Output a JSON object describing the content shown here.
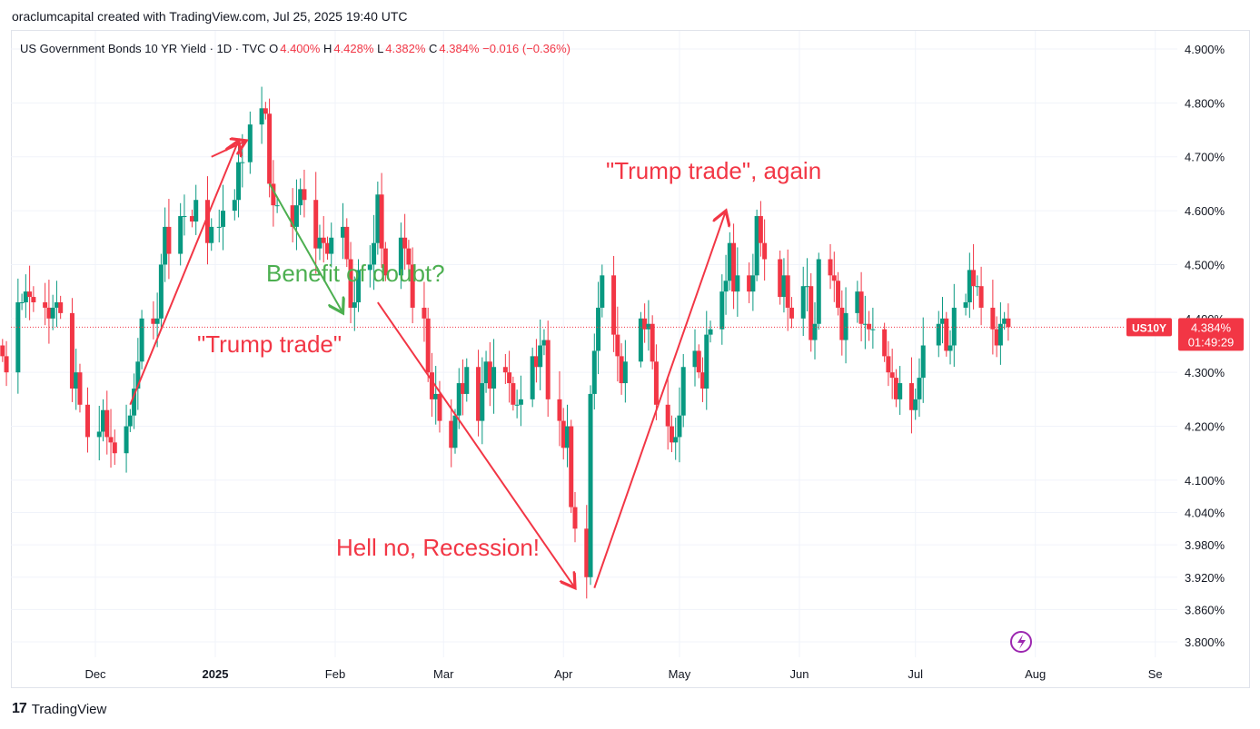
{
  "credit": "oraclumcapital created with TradingView.com, Jul 25, 2025 19:40 UTC",
  "legend": {
    "symbol": "US Government Bonds 10 YR Yield · 1D · TVC",
    "o_label": "O",
    "o_value": "4.400%",
    "h_label": "H",
    "h_value": "4.428%",
    "l_label": "L",
    "l_value": "4.382%",
    "c_label": "C",
    "c_value": "4.384%",
    "change": "−0.016 (−0.36%)"
  },
  "brand": {
    "logo": "17",
    "name": "TradingView"
  },
  "colors": {
    "up": "#089981",
    "down": "#f23645",
    "annotation_red": "#f23645",
    "annotation_green": "#4caf50",
    "grid": "#f0f3fa"
  },
  "chart_data": {
    "type": "candlestick",
    "title": "US Government Bonds 10 YR Yield",
    "xlabel": "",
    "ylabel": "",
    "ylim": [
      3.76,
      4.95
    ],
    "y_ticks": [
      "4.900%",
      "4.800%",
      "4.700%",
      "4.600%",
      "4.500%",
      "4.400%",
      "4.300%",
      "4.200%",
      "4.100%",
      "4.040%",
      "3.980%",
      "3.920%",
      "3.860%",
      "3.800%"
    ],
    "x_ticks": [
      {
        "label": "Dec",
        "date": "2024-12-01"
      },
      {
        "label": "2025",
        "date": "2025-01-01",
        "bold": true
      },
      {
        "label": "Feb",
        "date": "2025-02-01"
      },
      {
        "label": "Mar",
        "date": "2025-03-01"
      },
      {
        "label": "Apr",
        "date": "2025-04-01"
      },
      {
        "label": "May",
        "date": "2025-05-01"
      },
      {
        "label": "Jun",
        "date": "2025-06-01"
      },
      {
        "label": "Jul",
        "date": "2025-07-01"
      },
      {
        "label": "Aug",
        "date": "2025-08-01"
      },
      {
        "label": "Se",
        "date": "2025-09-01"
      }
    ],
    "last_price": {
      "symbol": "US10Y",
      "value": "4.384%",
      "countdown": "01:49:29",
      "price": 4.384
    },
    "closes": [
      {
        "date": "2024-11-07",
        "c": 4.33
      },
      {
        "date": "2024-11-08",
        "c": 4.3
      },
      {
        "date": "2024-11-11",
        "c": 4.43
      },
      {
        "date": "2024-11-12",
        "c": 4.43
      },
      {
        "date": "2024-11-13",
        "c": 4.45
      },
      {
        "date": "2024-11-14",
        "c": 4.44
      },
      {
        "date": "2024-11-15",
        "c": 4.43
      },
      {
        "date": "2024-11-18",
        "c": 4.42
      },
      {
        "date": "2024-11-19",
        "c": 4.4
      },
      {
        "date": "2024-11-20",
        "c": 4.42
      },
      {
        "date": "2024-11-21",
        "c": 4.43
      },
      {
        "date": "2024-11-22",
        "c": 4.41
      },
      {
        "date": "2024-11-25",
        "c": 4.27
      },
      {
        "date": "2024-11-26",
        "c": 4.3
      },
      {
        "date": "2024-11-27",
        "c": 4.24
      },
      {
        "date": "2024-11-29",
        "c": 4.18
      },
      {
        "date": "2024-12-02",
        "c": 4.19
      },
      {
        "date": "2024-12-03",
        "c": 4.23
      },
      {
        "date": "2024-12-04",
        "c": 4.18
      },
      {
        "date": "2024-12-05",
        "c": 4.17
      },
      {
        "date": "2024-12-06",
        "c": 4.15
      },
      {
        "date": "2024-12-09",
        "c": 4.2
      },
      {
        "date": "2024-12-10",
        "c": 4.22
      },
      {
        "date": "2024-12-11",
        "c": 4.27
      },
      {
        "date": "2024-12-12",
        "c": 4.32
      },
      {
        "date": "2024-12-13",
        "c": 4.4
      },
      {
        "date": "2024-12-16",
        "c": 4.39
      },
      {
        "date": "2024-12-17",
        "c": 4.4
      },
      {
        "date": "2024-12-18",
        "c": 4.5
      },
      {
        "date": "2024-12-19",
        "c": 4.57
      },
      {
        "date": "2024-12-20",
        "c": 4.52
      },
      {
        "date": "2024-12-23",
        "c": 4.59
      },
      {
        "date": "2024-12-24",
        "c": 4.59
      },
      {
        "date": "2024-12-26",
        "c": 4.58
      },
      {
        "date": "2024-12-27",
        "c": 4.62
      },
      {
        "date": "2024-12-30",
        "c": 4.54
      },
      {
        "date": "2024-12-31",
        "c": 4.57
      },
      {
        "date": "2025-01-02",
        "c": 4.57
      },
      {
        "date": "2025-01-03",
        "c": 4.6
      },
      {
        "date": "2025-01-06",
        "c": 4.62
      },
      {
        "date": "2025-01-07",
        "c": 4.69
      },
      {
        "date": "2025-01-08",
        "c": 4.69
      },
      {
        "date": "2025-01-10",
        "c": 4.76
      },
      {
        "date": "2025-01-13",
        "c": 4.79
      },
      {
        "date": "2025-01-14",
        "c": 4.78
      },
      {
        "date": "2025-01-15",
        "c": 4.65
      },
      {
        "date": "2025-01-16",
        "c": 4.61
      },
      {
        "date": "2025-01-17",
        "c": 4.61
      },
      {
        "date": "2025-01-21",
        "c": 4.57
      },
      {
        "date": "2025-01-22",
        "c": 4.61
      },
      {
        "date": "2025-01-23",
        "c": 4.64
      },
      {
        "date": "2025-01-24",
        "c": 4.62
      },
      {
        "date": "2025-01-27",
        "c": 4.53
      },
      {
        "date": "2025-01-28",
        "c": 4.55
      },
      {
        "date": "2025-01-29",
        "c": 4.54
      },
      {
        "date": "2025-01-30",
        "c": 4.52
      },
      {
        "date": "2025-01-31",
        "c": 4.55
      },
      {
        "date": "2025-02-03",
        "c": 4.57
      },
      {
        "date": "2025-02-04",
        "c": 4.51
      },
      {
        "date": "2025-02-05",
        "c": 4.42
      },
      {
        "date": "2025-02-06",
        "c": 4.43
      },
      {
        "date": "2025-02-07",
        "c": 4.49
      },
      {
        "date": "2025-02-10",
        "c": 4.5
      },
      {
        "date": "2025-02-11",
        "c": 4.54
      },
      {
        "date": "2025-02-12",
        "c": 4.63
      },
      {
        "date": "2025-02-13",
        "c": 4.53
      },
      {
        "date": "2025-02-14",
        "c": 4.48
      },
      {
        "date": "2025-02-18",
        "c": 4.55
      },
      {
        "date": "2025-02-19",
        "c": 4.53
      },
      {
        "date": "2025-02-20",
        "c": 4.5
      },
      {
        "date": "2025-02-21",
        "c": 4.42
      },
      {
        "date": "2025-02-24",
        "c": 4.4
      },
      {
        "date": "2025-02-25",
        "c": 4.3
      },
      {
        "date": "2025-02-26",
        "c": 4.25
      },
      {
        "date": "2025-02-27",
        "c": 4.26
      },
      {
        "date": "2025-02-28",
        "c": 4.21
      },
      {
        "date": "2025-03-03",
        "c": 4.16
      },
      {
        "date": "2025-03-04",
        "c": 4.22
      },
      {
        "date": "2025-03-05",
        "c": 4.28
      },
      {
        "date": "2025-03-06",
        "c": 4.26
      },
      {
        "date": "2025-03-07",
        "c": 4.31
      },
      {
        "date": "2025-03-10",
        "c": 4.21
      },
      {
        "date": "2025-03-11",
        "c": 4.28
      },
      {
        "date": "2025-03-12",
        "c": 4.32
      },
      {
        "date": "2025-03-13",
        "c": 4.27
      },
      {
        "date": "2025-03-14",
        "c": 4.31
      },
      {
        "date": "2025-03-17",
        "c": 4.3
      },
      {
        "date": "2025-03-18",
        "c": 4.28
      },
      {
        "date": "2025-03-19",
        "c": 4.24
      },
      {
        "date": "2025-03-20",
        "c": 4.24
      },
      {
        "date": "2025-03-21",
        "c": 4.25
      },
      {
        "date": "2025-03-24",
        "c": 4.33
      },
      {
        "date": "2025-03-25",
        "c": 4.31
      },
      {
        "date": "2025-03-26",
        "c": 4.35
      },
      {
        "date": "2025-03-27",
        "c": 4.36
      },
      {
        "date": "2025-03-28",
        "c": 4.25
      },
      {
        "date": "2025-03-31",
        "c": 4.21
      },
      {
        "date": "2025-04-01",
        "c": 4.16
      },
      {
        "date": "2025-04-02",
        "c": 4.2
      },
      {
        "date": "2025-04-03",
        "c": 4.05
      },
      {
        "date": "2025-04-04",
        "c": 4.01
      },
      {
        "date": "2025-04-07",
        "c": 3.92
      },
      {
        "date": "2025-04-08",
        "c": 4.26
      },
      {
        "date": "2025-04-09",
        "c": 4.34
      },
      {
        "date": "2025-04-10",
        "c": 4.42
      },
      {
        "date": "2025-04-11",
        "c": 4.48
      },
      {
        "date": "2025-04-14",
        "c": 4.37
      },
      {
        "date": "2025-04-15",
        "c": 4.33
      },
      {
        "date": "2025-04-16",
        "c": 4.28
      },
      {
        "date": "2025-04-17",
        "c": 4.32
      },
      {
        "date": "2025-04-21",
        "c": 4.4
      },
      {
        "date": "2025-04-22",
        "c": 4.38
      },
      {
        "date": "2025-04-23",
        "c": 4.39
      },
      {
        "date": "2025-04-24",
        "c": 4.32
      },
      {
        "date": "2025-04-25",
        "c": 4.24
      },
      {
        "date": "2025-04-28",
        "c": 4.2
      },
      {
        "date": "2025-04-29",
        "c": 4.17
      },
      {
        "date": "2025-04-30",
        "c": 4.18
      },
      {
        "date": "2025-05-01",
        "c": 4.22
      },
      {
        "date": "2025-05-02",
        "c": 4.31
      },
      {
        "date": "2025-05-05",
        "c": 4.34
      },
      {
        "date": "2025-05-06",
        "c": 4.3
      },
      {
        "date": "2025-05-07",
        "c": 4.27
      },
      {
        "date": "2025-05-08",
        "c": 4.37
      },
      {
        "date": "2025-05-09",
        "c": 4.38
      },
      {
        "date": "2025-05-12",
        "c": 4.45
      },
      {
        "date": "2025-05-13",
        "c": 4.47
      },
      {
        "date": "2025-05-14",
        "c": 4.54
      },
      {
        "date": "2025-05-15",
        "c": 4.45
      },
      {
        "date": "2025-05-16",
        "c": 4.48
      },
      {
        "date": "2025-05-19",
        "c": 4.45
      },
      {
        "date": "2025-05-20",
        "c": 4.48
      },
      {
        "date": "2025-05-21",
        "c": 4.59
      },
      {
        "date": "2025-05-22",
        "c": 4.54
      },
      {
        "date": "2025-05-23",
        "c": 4.51
      },
      {
        "date": "2025-05-27",
        "c": 4.44
      },
      {
        "date": "2025-05-28",
        "c": 4.48
      },
      {
        "date": "2025-05-29",
        "c": 4.42
      },
      {
        "date": "2025-05-30",
        "c": 4.4
      },
      {
        "date": "2025-06-02",
        "c": 4.46
      },
      {
        "date": "2025-06-03",
        "c": 4.46
      },
      {
        "date": "2025-06-04",
        "c": 4.36
      },
      {
        "date": "2025-06-05",
        "c": 4.39
      },
      {
        "date": "2025-06-06",
        "c": 4.51
      },
      {
        "date": "2025-06-09",
        "c": 4.48
      },
      {
        "date": "2025-06-10",
        "c": 4.47
      },
      {
        "date": "2025-06-11",
        "c": 4.42
      },
      {
        "date": "2025-06-12",
        "c": 4.36
      },
      {
        "date": "2025-06-13",
        "c": 4.41
      },
      {
        "date": "2025-06-16",
        "c": 4.45
      },
      {
        "date": "2025-06-17",
        "c": 4.39
      },
      {
        "date": "2025-06-18",
        "c": 4.39
      },
      {
        "date": "2025-06-19",
        "c": 4.38
      },
      {
        "date": "2025-06-20",
        "c": 4.38
      },
      {
        "date": "2025-06-23",
        "c": 4.33
      },
      {
        "date": "2025-06-24",
        "c": 4.3
      },
      {
        "date": "2025-06-25",
        "c": 4.29
      },
      {
        "date": "2025-06-26",
        "c": 4.25
      },
      {
        "date": "2025-06-27",
        "c": 4.28
      },
      {
        "date": "2025-06-30",
        "c": 4.23
      },
      {
        "date": "2025-07-01",
        "c": 4.25
      },
      {
        "date": "2025-07-02",
        "c": 4.29
      },
      {
        "date": "2025-07-03",
        "c": 4.35
      },
      {
        "date": "2025-07-07",
        "c": 4.39
      },
      {
        "date": "2025-07-08",
        "c": 4.4
      },
      {
        "date": "2025-07-09",
        "c": 4.34
      },
      {
        "date": "2025-07-10",
        "c": 4.35
      },
      {
        "date": "2025-07-11",
        "c": 4.42
      },
      {
        "date": "2025-07-14",
        "c": 4.43
      },
      {
        "date": "2025-07-15",
        "c": 4.49
      },
      {
        "date": "2025-07-16",
        "c": 4.46
      },
      {
        "date": "2025-07-17",
        "c": 4.46
      },
      {
        "date": "2025-07-18",
        "c": 4.42
      },
      {
        "date": "2025-07-21",
        "c": 4.38
      },
      {
        "date": "2025-07-22",
        "c": 4.35
      },
      {
        "date": "2025-07-23",
        "c": 4.39
      },
      {
        "date": "2025-07-24",
        "c": 4.4
      },
      {
        "date": "2025-07-25",
        "c": 4.384
      }
    ]
  },
  "annotations": {
    "trump_trade": "\"Trump trade\"",
    "benefit": "Benefit of doubt?",
    "hell_no": "Hell no, Recession!",
    "trump_again": "\"Trump trade\", again"
  }
}
